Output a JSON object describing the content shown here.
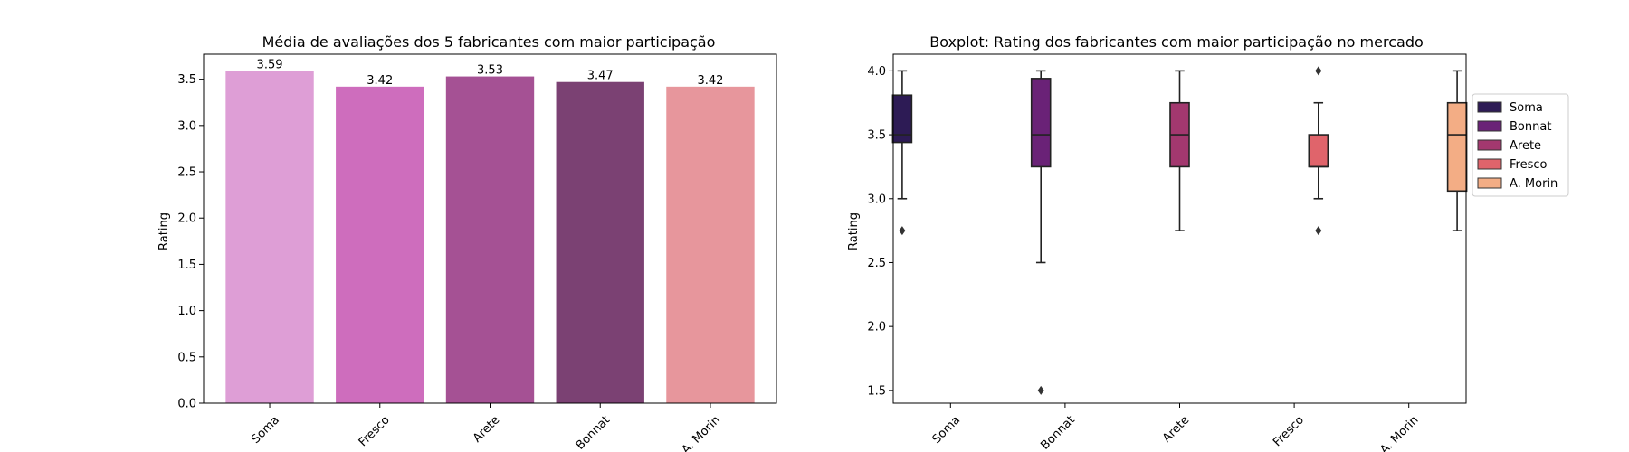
{
  "chart_data": [
    {
      "type": "bar",
      "title": "Média de avaliações dos 5 fabricantes com maior participação",
      "xlabel": "",
      "ylabel": "Rating",
      "categories": [
        "Soma",
        "Fresco",
        "Arete",
        "Bonnat",
        "A. Morin"
      ],
      "values": [
        3.59,
        3.42,
        3.53,
        3.47,
        3.42
      ],
      "value_labels": [
        "3.59",
        "3.42",
        "3.53",
        "3.47",
        "3.42"
      ],
      "colors": [
        "#de9ed6",
        "#ce6dbd",
        "#a55194",
        "#7b4173",
        "#e7969c"
      ],
      "ylim": [
        0,
        3.77
      ],
      "yticks": [
        0.0,
        0.5,
        1.0,
        1.5,
        2.0,
        2.5,
        3.0,
        3.5
      ],
      "ytick_labels": [
        "0.0",
        "0.5",
        "1.0",
        "1.5",
        "2.0",
        "2.5",
        "3.0",
        "3.5"
      ]
    },
    {
      "type": "boxplot",
      "title": "Boxplot: Rating dos fabricantes com maior participação no mercado",
      "xlabel": "",
      "ylabel": "Rating",
      "categories": [
        "Soma",
        "Bonnat",
        "Arete",
        "Fresco",
        "A. Morin"
      ],
      "ylim": [
        1.4,
        4.13
      ],
      "yticks": [
        1.5,
        2.0,
        2.5,
        3.0,
        3.5,
        4.0
      ],
      "ytick_labels": [
        "1.5",
        "2.0",
        "2.5",
        "3.0",
        "3.5",
        "4.0"
      ],
      "series": [
        {
          "name": "Soma",
          "color": "#2d1b55",
          "category_index": 0,
          "whisker_low": 3.0,
          "q1": 3.44,
          "median": 3.5,
          "q3": 3.81,
          "whisker_high": 4.0,
          "outliers": [
            2.75
          ]
        },
        {
          "name": "Bonnat",
          "color": "#6a2277",
          "category_index": 1,
          "whisker_low": 2.5,
          "q1": 3.25,
          "median": 3.5,
          "q3": 3.94,
          "whisker_high": 4.0,
          "outliers": [
            1.5
          ]
        },
        {
          "name": "Arete",
          "color": "#a3386f",
          "category_index": 2,
          "whisker_low": 2.75,
          "q1": 3.25,
          "median": 3.5,
          "q3": 3.75,
          "whisker_high": 4.0,
          "outliers": []
        },
        {
          "name": "Fresco",
          "color": "#e0646b",
          "category_index": 3,
          "whisker_low": 3.0,
          "q1": 3.25,
          "median": 3.25,
          "q3": 3.5,
          "whisker_high": 3.75,
          "outliers": [
            4.0,
            2.75
          ]
        },
        {
          "name": "A. Morin",
          "color": "#f3ad85",
          "category_index": 4,
          "whisker_low": 2.75,
          "q1": 3.06,
          "median": 3.5,
          "q3": 3.75,
          "whisker_high": 4.0,
          "outliers": []
        }
      ],
      "legend": {
        "position": "outside-right",
        "entries": [
          "Soma",
          "Bonnat",
          "Arete",
          "Fresco",
          "A. Morin"
        ]
      }
    }
  ]
}
